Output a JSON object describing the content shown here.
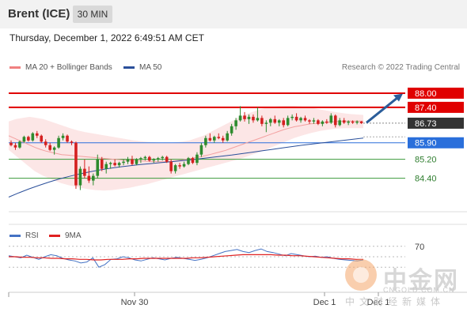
{
  "header": {
    "instrument": "Brent (ICE)",
    "interval": "30 MIN"
  },
  "timestamp": "Thursday, December 1, 2022 6:49:51 AM CET",
  "credit": "Research © 2022 Trading Central",
  "legend_main": [
    {
      "label": "MA 20 + Bollinger Bands",
      "color": "#f08080"
    },
    {
      "label": "MA 50",
      "color": "#2a4f9a"
    }
  ],
  "legend_rsi": [
    {
      "label": "RSI",
      "color": "#4472c4"
    },
    {
      "label": "9MA",
      "color": "#e02020"
    }
  ],
  "watermark": {
    "title": "中金网",
    "url": "CNGOLD.COM.CN",
    "tagline": "中文财经新媒体"
  },
  "colors": {
    "up": "#2e8b2e",
    "down": "#d42020",
    "resistance": "#e00000",
    "support": "#3a9a3a",
    "pivot": "#2a6fdb",
    "price": "#333333",
    "arrow": "#2a5d9a"
  },
  "chart_data": {
    "type": "candlestick",
    "ylim": [
      83.25,
      88.6
    ],
    "levels": [
      {
        "value": 88.0,
        "label": "88.00",
        "kind": "resistance"
      },
      {
        "value": 87.4,
        "label": "87.40",
        "kind": "resistance"
      },
      {
        "value": 86.73,
        "label": "86.73",
        "kind": "price"
      },
      {
        "value": 85.9,
        "label": "85.90",
        "kind": "pivot"
      },
      {
        "value": 85.2,
        "label": "85.20",
        "kind": "support"
      },
      {
        "value": 84.4,
        "label": "84.40",
        "kind": "support"
      }
    ],
    "x_labels": [
      "Nov 30",
      "Dec 1",
      "Dec 1"
    ],
    "candles": [
      [
        85.9,
        86.0,
        85.75,
        85.8
      ],
      [
        85.8,
        85.9,
        85.6,
        85.7
      ],
      [
        85.7,
        86.0,
        85.65,
        85.95
      ],
      [
        85.95,
        86.2,
        85.9,
        86.15
      ],
      [
        86.15,
        86.2,
        85.95,
        86.0
      ],
      [
        86.0,
        86.35,
        85.95,
        86.3
      ],
      [
        86.3,
        86.4,
        86.1,
        86.2
      ],
      [
        86.2,
        86.25,
        85.9,
        85.95
      ],
      [
        85.95,
        86.05,
        85.7,
        85.8
      ],
      [
        85.8,
        85.9,
        85.55,
        85.6
      ],
      [
        85.6,
        85.75,
        85.4,
        85.7
      ],
      [
        85.7,
        86.2,
        85.65,
        86.1
      ],
      [
        86.1,
        86.3,
        86.0,
        86.2
      ],
      [
        86.2,
        86.25,
        85.9,
        85.95
      ],
      [
        85.95,
        86.0,
        85.8,
        85.9
      ],
      [
        85.9,
        85.95,
        83.95,
        84.1
      ],
      [
        84.1,
        84.9,
        83.9,
        84.8
      ],
      [
        84.8,
        85.2,
        84.4,
        84.5
      ],
      [
        84.5,
        84.9,
        84.2,
        84.3
      ],
      [
        84.3,
        84.6,
        84.1,
        84.5
      ],
      [
        84.5,
        85.4,
        84.4,
        85.2
      ],
      [
        85.2,
        85.3,
        84.7,
        84.8
      ],
      [
        84.8,
        85.1,
        84.6,
        85.0
      ],
      [
        85.0,
        85.1,
        84.8,
        85.05
      ],
      [
        85.05,
        85.2,
        84.9,
        84.95
      ],
      [
        84.95,
        85.1,
        84.85,
        85.05
      ],
      [
        85.05,
        85.2,
        84.95,
        85.1
      ],
      [
        85.1,
        85.3,
        85.0,
        85.2
      ],
      [
        85.2,
        85.35,
        84.95,
        85.0
      ],
      [
        85.0,
        85.25,
        84.95,
        85.2
      ],
      [
        85.2,
        85.3,
        85.05,
        85.25
      ],
      [
        85.25,
        85.35,
        85.15,
        85.3
      ],
      [
        85.3,
        85.35,
        85.1,
        85.15
      ],
      [
        85.15,
        85.25,
        85.05,
        85.2
      ],
      [
        85.2,
        85.3,
        85.1,
        85.25
      ],
      [
        85.25,
        85.35,
        85.15,
        85.3
      ],
      [
        85.3,
        85.35,
        85.05,
        85.1
      ],
      [
        85.1,
        85.2,
        84.6,
        84.7
      ],
      [
        84.7,
        85.0,
        84.6,
        84.95
      ],
      [
        84.95,
        85.05,
        84.8,
        84.9
      ],
      [
        84.9,
        85.1,
        84.85,
        85.0
      ],
      [
        85.0,
        85.3,
        84.95,
        85.25
      ],
      [
        85.25,
        85.3,
        85.0,
        85.05
      ],
      [
        85.05,
        85.5,
        84.95,
        85.4
      ],
      [
        85.4,
        85.9,
        85.3,
        85.8
      ],
      [
        85.8,
        86.2,
        85.7,
        86.1
      ],
      [
        86.1,
        86.3,
        85.95,
        86.0
      ],
      [
        86.0,
        86.2,
        85.9,
        86.15
      ],
      [
        86.15,
        86.3,
        86.05,
        86.1
      ],
      [
        86.1,
        86.2,
        85.9,
        86.0
      ],
      [
        86.0,
        86.4,
        85.95,
        86.3
      ],
      [
        86.3,
        86.7,
        86.2,
        86.6
      ],
      [
        86.6,
        86.95,
        86.45,
        86.85
      ],
      [
        86.85,
        87.45,
        86.8,
        87.05
      ],
      [
        87.05,
        87.2,
        86.8,
        86.9
      ],
      [
        86.9,
        87.1,
        86.7,
        87.0
      ],
      [
        87.0,
        87.1,
        86.75,
        86.85
      ],
      [
        86.85,
        87.4,
        86.8,
        86.95
      ],
      [
        86.95,
        87.05,
        86.6,
        86.7
      ],
      [
        86.7,
        86.85,
        86.35,
        86.75
      ],
      [
        86.75,
        86.95,
        86.6,
        86.9
      ],
      [
        86.9,
        87.05,
        86.7,
        86.75
      ],
      [
        86.75,
        86.9,
        86.6,
        86.85
      ],
      [
        86.85,
        86.95,
        86.55,
        86.65
      ],
      [
        86.65,
        87.05,
        86.6,
        86.95
      ],
      [
        86.95,
        87.1,
        86.85,
        87.0
      ],
      [
        87.0,
        87.15,
        86.8,
        86.85
      ],
      [
        86.85,
        87.0,
        86.75,
        86.95
      ],
      [
        86.95,
        87.05,
        86.8,
        86.85
      ],
      [
        86.85,
        86.9,
        86.7,
        86.8
      ],
      [
        86.8,
        86.95,
        86.7,
        86.85
      ],
      [
        86.85,
        86.9,
        86.65,
        86.7
      ],
      [
        86.7,
        86.85,
        86.6,
        86.8
      ],
      [
        86.8,
        86.9,
        86.7,
        86.75
      ],
      [
        86.75,
        87.15,
        86.7,
        87.05
      ],
      [
        87.05,
        87.1,
        86.55,
        86.65
      ],
      [
        86.65,
        86.95,
        86.6,
        86.85
      ],
      [
        86.85,
        86.95,
        86.7,
        86.75
      ],
      [
        86.75,
        86.85,
        86.65,
        86.8
      ],
      [
        86.8,
        86.85,
        86.7,
        86.75
      ],
      [
        86.75,
        86.85,
        86.68,
        86.8
      ],
      [
        86.8,
        86.82,
        86.7,
        86.73
      ]
    ],
    "series": [
      {
        "name": "MA 20",
        "values": [
          86.2,
          86.1,
          86.0,
          85.9,
          85.8,
          85.7,
          85.62,
          85.55,
          85.5,
          85.45,
          85.4,
          85.38,
          85.36,
          85.34,
          85.32,
          85.3,
          85.28,
          85.26,
          85.24,
          85.22,
          85.2,
          85.18,
          85.16,
          85.15,
          85.14,
          85.13,
          85.12,
          85.11,
          85.1,
          85.1,
          85.1,
          85.12,
          85.15,
          85.18,
          85.22,
          85.26,
          85.3,
          85.35,
          85.4,
          85.46,
          85.52,
          85.58,
          85.66,
          85.74,
          85.82,
          85.9,
          85.98,
          86.06,
          86.14,
          86.22,
          86.3,
          86.38,
          86.46,
          86.52,
          86.58,
          86.62,
          86.66,
          86.7,
          86.72,
          86.74,
          86.76,
          86.78,
          86.8,
          86.81,
          86.82,
          86.82,
          86.82,
          86.82
        ]
      },
      {
        "name": "BB Upper",
        "values": [
          86.8,
          86.9,
          86.95,
          87.0,
          86.95,
          86.9,
          86.8,
          86.7,
          86.6,
          86.5,
          86.42,
          86.35,
          86.3,
          86.25,
          86.2,
          86.15,
          86.1,
          86.05,
          86.0,
          85.97,
          85.94,
          85.92,
          85.9,
          85.9,
          85.92,
          85.95,
          86.0,
          86.1,
          86.2,
          86.35,
          86.5,
          86.65,
          86.8,
          86.95,
          87.1,
          87.2,
          87.3,
          87.38,
          87.42,
          87.45,
          87.46,
          87.46,
          87.44,
          87.4,
          87.36,
          87.3,
          87.25,
          87.2,
          87.16,
          87.12,
          87.1,
          87.08
        ]
      },
      {
        "name": "BB Lower",
        "values": [
          85.6,
          85.3,
          85.0,
          84.7,
          84.5,
          84.35,
          84.2,
          84.1,
          84.02,
          83.95,
          83.9,
          83.88,
          83.9,
          83.95,
          84.0,
          84.08,
          84.15,
          84.25,
          84.35,
          84.45,
          84.55,
          84.65,
          84.75,
          84.85,
          84.95,
          85.05,
          85.15,
          85.25,
          85.38,
          85.5,
          85.65,
          85.8,
          85.95,
          86.1,
          86.22,
          86.32,
          86.4,
          86.46,
          86.5,
          86.52,
          86.52,
          86.52
        ]
      },
      {
        "name": "MA 50",
        "values": [
          83.6,
          83.78,
          83.95,
          84.1,
          84.24,
          84.37,
          84.48,
          84.58,
          84.67,
          84.75,
          84.82,
          84.88,
          84.93,
          84.98,
          85.02,
          85.06,
          85.1,
          85.14,
          85.18,
          85.23,
          85.28,
          85.33,
          85.38,
          85.44,
          85.5,
          85.56,
          85.62,
          85.68,
          85.74,
          85.8,
          85.85,
          85.9,
          85.95,
          86.0,
          86.05,
          86.1
        ]
      },
      {
        "name": "RSI",
        "values": [
          52,
          50,
          48,
          53,
          49,
          45,
          50,
          54,
          52,
          47,
          44,
          42,
          38,
          40,
          48,
          30,
          35,
          45,
          46,
          50,
          48,
          44,
          42,
          45,
          48,
          46,
          44,
          47,
          49,
          47,
          45,
          43,
          45,
          48,
          52,
          56,
          60,
          62,
          64,
          60,
          58,
          62,
          65,
          60,
          58,
          55,
          52,
          56,
          54,
          52,
          50,
          51,
          49,
          50,
          47,
          45,
          44,
          43,
          42,
          44
        ]
      },
      {
        "name": "9MA",
        "values": [
          50,
          50,
          49,
          49,
          48,
          48,
          47,
          47,
          46,
          46,
          45,
          45,
          44,
          44,
          45,
          45,
          45,
          46,
          46,
          47,
          47,
          47,
          47,
          47,
          47,
          47,
          48,
          48,
          49,
          50,
          51,
          52,
          53,
          54,
          54,
          54,
          54,
          54,
          53,
          53,
          52,
          52,
          51,
          50,
          49,
          48,
          47,
          46,
          46,
          45,
          45
        ]
      }
    ],
    "rsi_levels": [
      70,
      50,
      30
    ],
    "rsi_tick_labels": [
      "70"
    ]
  }
}
